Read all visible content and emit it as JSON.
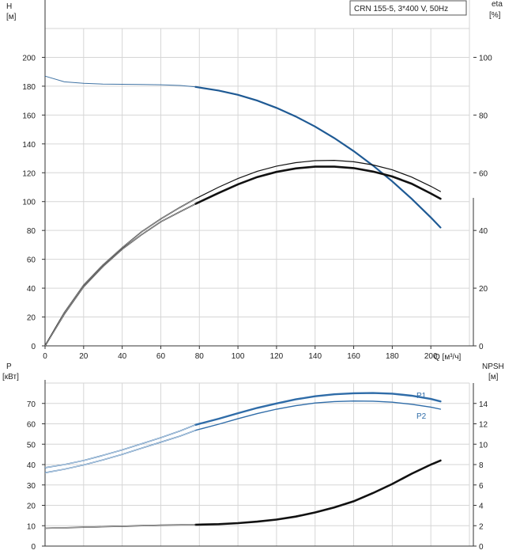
{
  "colors": {
    "head": "#1f5a94",
    "power": "#2f6ca8",
    "eta": "#111111",
    "npsh": "#111111",
    "grid": "#d6d6d6"
  },
  "chart_data": [
    {
      "type": "line",
      "title": "CRN 155-5, 3*400 V, 50Hz",
      "xlabel": "Q [м³/ч]",
      "ylabel": "H\n[м]",
      "y2label": "eta\n[%]",
      "xlim": [
        0,
        220
      ],
      "ylim": [
        0,
        220
      ],
      "y2lim": [
        0,
        110
      ],
      "x_ticks": [
        0,
        20,
        40,
        60,
        80,
        100,
        120,
        140,
        160,
        180,
        200
      ],
      "y_ticks": [
        0,
        20,
        40,
        60,
        80,
        100,
        120,
        140,
        160,
        180,
        200
      ],
      "y2_ticks": [
        0,
        20,
        40,
        60,
        80,
        100
      ],
      "grid": true,
      "series": [
        {
          "name": "H",
          "axis": "left",
          "dashed_until": 78,
          "x": [
            0,
            10,
            20,
            30,
            40,
            50,
            60,
            70,
            78,
            90,
            100,
            110,
            120,
            130,
            140,
            150,
            160,
            170,
            180,
            190,
            200,
            205
          ],
          "y": [
            187,
            183,
            182,
            181.5,
            181.3,
            181.2,
            181.0,
            180.5,
            179.5,
            177,
            174,
            170,
            165,
            159,
            152,
            144,
            135,
            125,
            114,
            102,
            89,
            82
          ]
        },
        {
          "name": "eta (1)",
          "axis": "right",
          "dashed_until": 78,
          "x": [
            0,
            10,
            20,
            30,
            40,
            50,
            60,
            70,
            78,
            90,
            100,
            110,
            120,
            130,
            140,
            150,
            160,
            170,
            180,
            190,
            200,
            205
          ],
          "y": [
            0,
            11.5,
            21,
            28,
            34,
            39.5,
            44,
            48,
            51,
            55,
            58,
            60.5,
            62.3,
            63.5,
            64.2,
            64.3,
            63.8,
            62.7,
            61,
            58.5,
            55.3,
            53.5
          ]
        },
        {
          "name": "eta (2)",
          "axis": "right",
          "dashed_until": 78,
          "x": [
            0,
            10,
            20,
            30,
            40,
            50,
            60,
            70,
            78,
            90,
            100,
            110,
            120,
            130,
            140,
            150,
            160,
            170,
            180,
            190,
            200,
            205
          ],
          "y": [
            0,
            11,
            20.5,
            27.5,
            33.5,
            38.5,
            43,
            46.5,
            49.2,
            53,
            56,
            58.5,
            60.3,
            61.5,
            62.1,
            62.1,
            61.6,
            60.4,
            58.7,
            56.2,
            52.8,
            51
          ]
        }
      ]
    },
    {
      "type": "line",
      "title": "",
      "xlabel": "",
      "ylabel": "P\n[кВт]",
      "y2label": "NPSH\n[м]",
      "xlim": [
        0,
        220
      ],
      "ylim": [
        0,
        80
      ],
      "y2lim": [
        0,
        16
      ],
      "y_ticks": [
        0,
        10,
        20,
        30,
        40,
        50,
        60,
        70
      ],
      "y2_ticks": [
        0,
        2,
        4,
        6,
        8,
        10,
        12,
        14
      ],
      "grid": true,
      "series": [
        {
          "name": "P1",
          "axis": "left",
          "dashed_until": 78,
          "x": [
            0,
            10,
            20,
            30,
            40,
            50,
            60,
            70,
            78,
            90,
            100,
            110,
            120,
            130,
            140,
            150,
            160,
            170,
            180,
            190,
            200,
            205
          ],
          "y": [
            38.5,
            40,
            42,
            44.5,
            47.2,
            50.2,
            53.2,
            56.5,
            59.5,
            62.5,
            65.2,
            67.8,
            70,
            72,
            73.5,
            74.5,
            75,
            75.1,
            74.8,
            73.8,
            72.2,
            71
          ]
        },
        {
          "name": "P2",
          "axis": "left",
          "dashed_until": 78,
          "x": [
            0,
            10,
            20,
            30,
            40,
            50,
            60,
            70,
            78,
            90,
            100,
            110,
            120,
            130,
            140,
            150,
            160,
            170,
            180,
            190,
            200,
            205
          ],
          "y": [
            36,
            37.7,
            39.8,
            42.3,
            45,
            48,
            51,
            54,
            56.8,
            59.8,
            62.5,
            65,
            67.2,
            68.9,
            70.2,
            70.9,
            71.2,
            71.1,
            70.6,
            69.6,
            68.2,
            67.2
          ]
        },
        {
          "name": "NPSH",
          "axis": "right",
          "dashed_until": 78,
          "x": [
            0,
            20,
            40,
            60,
            78,
            90,
            100,
            110,
            120,
            130,
            140,
            150,
            160,
            170,
            180,
            190,
            200,
            205
          ],
          "y": [
            1.75,
            1.85,
            1.95,
            2.05,
            2.1,
            2.15,
            2.25,
            2.4,
            2.6,
            2.9,
            3.3,
            3.8,
            4.4,
            5.2,
            6.1,
            7.1,
            8.0,
            8.4
          ]
        }
      ],
      "labels": {
        "p1": "P1",
        "p2": "P2"
      }
    }
  ]
}
